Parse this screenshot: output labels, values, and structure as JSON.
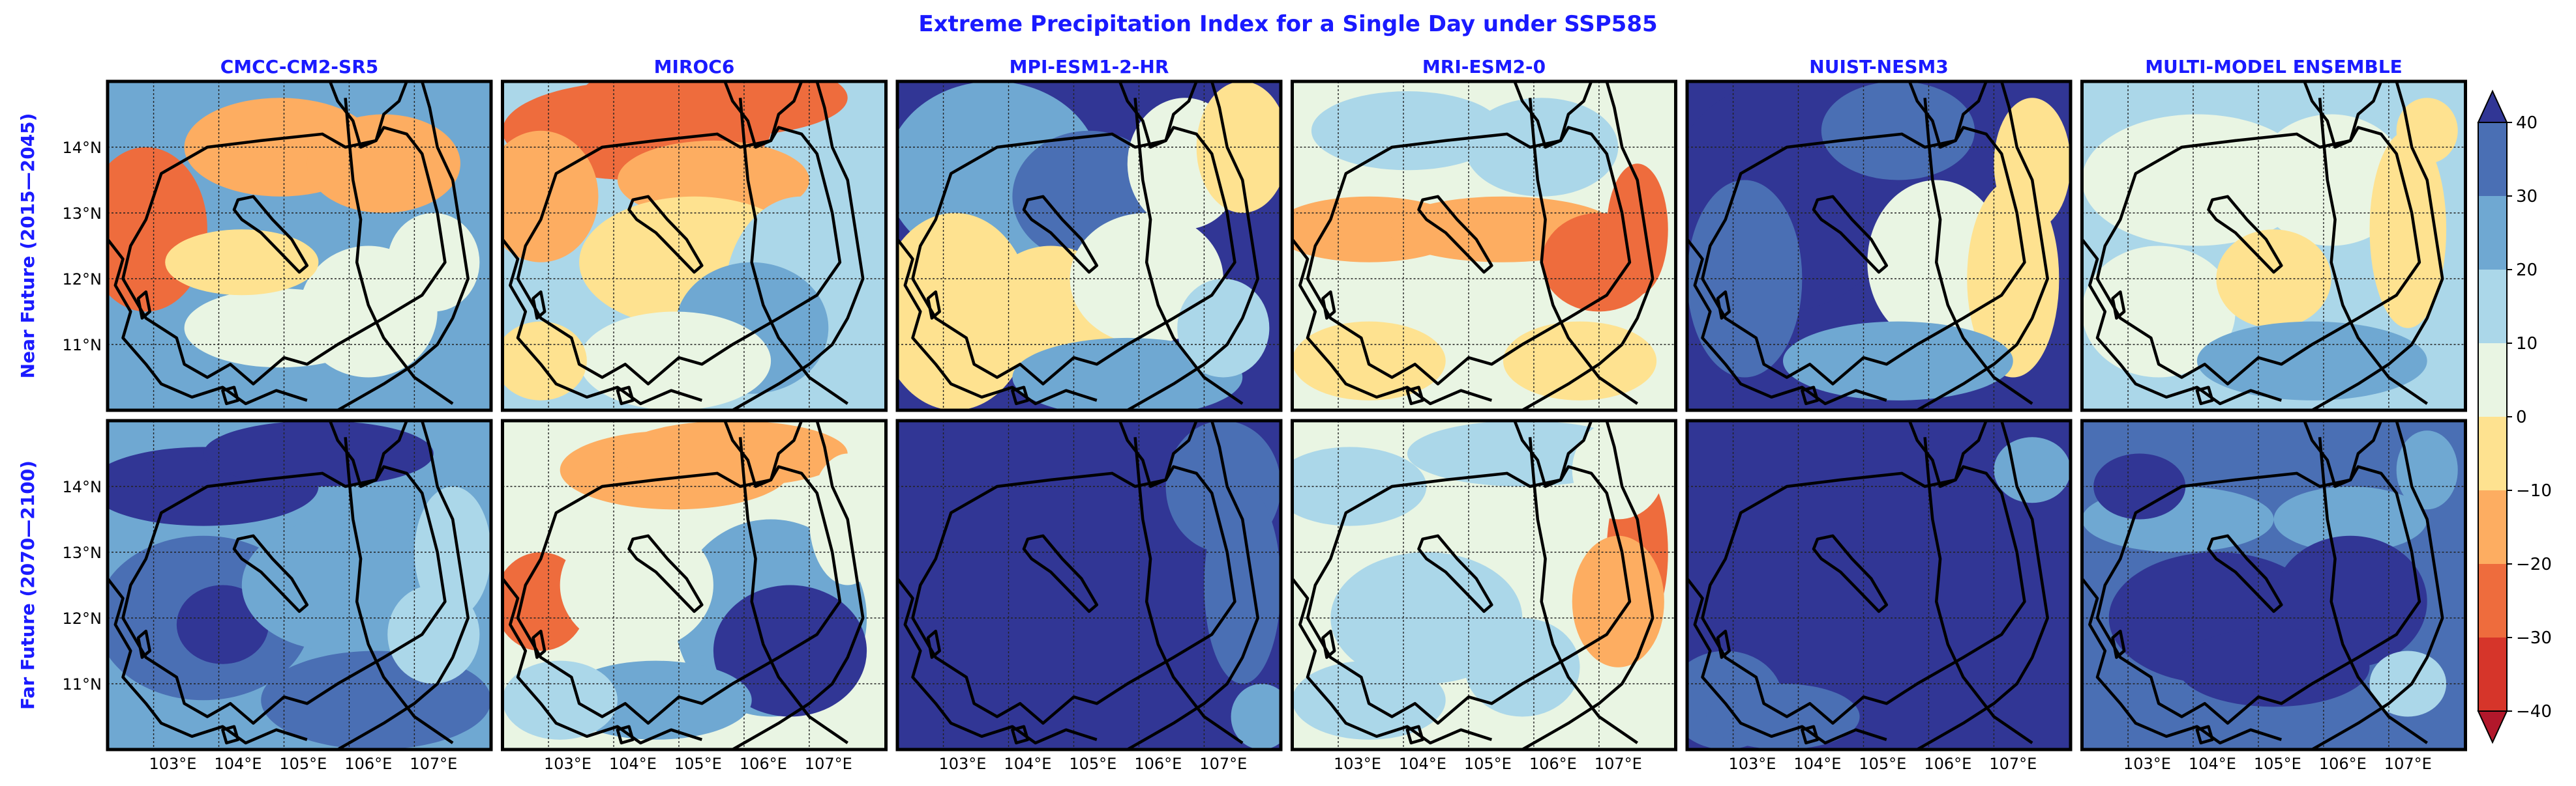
{
  "title": "Extreme Precipitation Index for a Single Day under SSP585",
  "title_color": "#1a1aff",
  "models": [
    "CMCC-CM2-SR5",
    "MIROC6",
    "MPI-ESM1-2-HR",
    "MRI-ESM2-0",
    "NUIST-NESM3",
    "MULTI-MODEL ENSEMBLE"
  ],
  "rows": [
    "Near Future (2015—2045)",
    "Far Future (2070—2100)"
  ],
  "lat_ticks": [
    "14°N",
    "13°N",
    "12°N",
    "11°N"
  ],
  "lon_ticks": [
    "103°E",
    "104°E",
    "105°E",
    "106°E",
    "107°E"
  ],
  "colorbar": {
    "ticks": [
      "40",
      "30",
      "20",
      "10",
      "0",
      "−10",
      "−20",
      "−30",
      "−40"
    ],
    "levels": [
      -40,
      -30,
      -20,
      -10,
      0,
      10,
      20,
      30,
      40
    ],
    "colors": {
      "n40": "#b2182b",
      "n30": "#d6352a",
      "n20": "#ee6c3d",
      "n10": "#fdad61",
      "n0": "#fee290",
      "p0": "#e9f5e3",
      "p10": "#abd7e9",
      "p20": "#6fa8d2",
      "p30": "#4a6fb4",
      "p40": "#313695"
    },
    "extend": "both"
  },
  "panels": [
    {
      "row": 0,
      "col": 0,
      "base": 3,
      "blobs": [
        [
          0.1,
          0.45,
          0.16,
          0.25,
          -2
        ],
        [
          0.45,
          0.2,
          0.25,
          0.15,
          -1
        ],
        [
          0.72,
          0.25,
          0.2,
          0.15,
          -1
        ],
        [
          0.68,
          0.7,
          0.18,
          0.2,
          1
        ],
        [
          0.45,
          0.75,
          0.25,
          0.12,
          1
        ],
        [
          0.35,
          0.55,
          0.2,
          0.1,
          0
        ],
        [
          0.85,
          0.55,
          0.12,
          0.15,
          1
        ]
      ]
    },
    {
      "row": 0,
      "col": 1,
      "base": 2,
      "blobs": [
        [
          0.35,
          0.15,
          0.35,
          0.15,
          -2
        ],
        [
          0.55,
          0.05,
          0.35,
          0.12,
          -2
        ],
        [
          0.55,
          0.3,
          0.25,
          0.12,
          -1
        ],
        [
          0.1,
          0.35,
          0.15,
          0.2,
          -1
        ],
        [
          0.5,
          0.55,
          0.3,
          0.2,
          0
        ],
        [
          0.78,
          0.65,
          0.2,
          0.3,
          2
        ],
        [
          0.65,
          0.75,
          0.2,
          0.2,
          3
        ],
        [
          0.45,
          0.85,
          0.25,
          0.15,
          1
        ],
        [
          0.1,
          0.85,
          0.12,
          0.12,
          0
        ]
      ]
    },
    {
      "row": 0,
      "col": 2,
      "base": 5,
      "blobs": [
        [
          0.25,
          0.28,
          0.28,
          0.28,
          3
        ],
        [
          0.5,
          0.35,
          0.2,
          0.2,
          4
        ],
        [
          0.15,
          0.7,
          0.2,
          0.3,
          0
        ],
        [
          0.4,
          0.7,
          0.18,
          0.2,
          0
        ],
        [
          0.65,
          0.6,
          0.2,
          0.2,
          1
        ],
        [
          0.75,
          0.25,
          0.15,
          0.2,
          1
        ],
        [
          0.9,
          0.2,
          0.12,
          0.2,
          0
        ],
        [
          0.6,
          0.9,
          0.3,
          0.12,
          3
        ],
        [
          0.85,
          0.75,
          0.12,
          0.15,
          2
        ]
      ]
    },
    {
      "row": 0,
      "col": 3,
      "base": 1,
      "blobs": [
        [
          0.3,
          0.15,
          0.25,
          0.12,
          2
        ],
        [
          0.65,
          0.2,
          0.2,
          0.15,
          2
        ],
        [
          0.2,
          0.45,
          0.25,
          0.1,
          -1
        ],
        [
          0.55,
          0.45,
          0.3,
          0.1,
          -1
        ],
        [
          0.8,
          0.55,
          0.15,
          0.15,
          -2
        ],
        [
          0.9,
          0.45,
          0.08,
          0.2,
          -2
        ],
        [
          0.4,
          0.7,
          0.3,
          0.15,
          1
        ],
        [
          0.2,
          0.85,
          0.2,
          0.12,
          0
        ],
        [
          0.75,
          0.85,
          0.2,
          0.12,
          0
        ]
      ]
    },
    {
      "row": 0,
      "col": 4,
      "base": 5,
      "blobs": [
        [
          0.25,
          0.35,
          0.3,
          0.35,
          5
        ],
        [
          0.15,
          0.6,
          0.15,
          0.3,
          4
        ],
        [
          0.55,
          0.15,
          0.2,
          0.15,
          4
        ],
        [
          0.65,
          0.55,
          0.18,
          0.25,
          1
        ],
        [
          0.85,
          0.6,
          0.12,
          0.3,
          0
        ],
        [
          0.9,
          0.25,
          0.1,
          0.2,
          0
        ],
        [
          0.55,
          0.85,
          0.3,
          0.12,
          3
        ]
      ]
    },
    {
      "row": 0,
      "col": 5,
      "base": 2,
      "blobs": [
        [
          0.3,
          0.3,
          0.3,
          0.2,
          1
        ],
        [
          0.65,
          0.3,
          0.2,
          0.2,
          1
        ],
        [
          0.2,
          0.7,
          0.2,
          0.2,
          1
        ],
        [
          0.5,
          0.6,
          0.15,
          0.15,
          0
        ],
        [
          0.85,
          0.45,
          0.1,
          0.3,
          0
        ],
        [
          0.9,
          0.15,
          0.08,
          0.1,
          0
        ],
        [
          0.6,
          0.85,
          0.3,
          0.12,
          3
        ]
      ]
    },
    {
      "row": 1,
      "col": 0,
      "base": 3,
      "blobs": [
        [
          0.25,
          0.2,
          0.3,
          0.12,
          5
        ],
        [
          0.55,
          0.1,
          0.3,
          0.1,
          5
        ],
        [
          0.25,
          0.6,
          0.28,
          0.25,
          4
        ],
        [
          0.3,
          0.62,
          0.12,
          0.12,
          5
        ],
        [
          0.6,
          0.5,
          0.25,
          0.2,
          3
        ],
        [
          0.7,
          0.85,
          0.3,
          0.15,
          4
        ],
        [
          0.9,
          0.4,
          0.1,
          0.2,
          2
        ],
        [
          0.85,
          0.65,
          0.12,
          0.15,
          2
        ]
      ]
    },
    {
      "row": 1,
      "col": 1,
      "base": 1,
      "blobs": [
        [
          0.45,
          0.15,
          0.3,
          0.12,
          -1
        ],
        [
          0.6,
          0.1,
          0.3,
          0.1,
          -1
        ],
        [
          0.1,
          0.55,
          0.12,
          0.15,
          -2
        ],
        [
          0.7,
          0.6,
          0.25,
          0.3,
          3
        ],
        [
          0.75,
          0.7,
          0.2,
          0.2,
          5
        ],
        [
          0.4,
          0.85,
          0.25,
          0.12,
          3
        ],
        [
          0.15,
          0.85,
          0.15,
          0.12,
          2
        ],
        [
          0.35,
          0.5,
          0.2,
          0.2,
          1
        ],
        [
          0.9,
          0.3,
          0.1,
          0.2,
          1
        ]
      ]
    },
    {
      "row": 1,
      "col": 2,
      "base": 5,
      "blobs": [
        [
          0.85,
          0.2,
          0.15,
          0.2,
          4
        ],
        [
          0.9,
          0.5,
          0.1,
          0.3,
          4
        ],
        [
          0.95,
          0.9,
          0.08,
          0.1,
          3
        ]
      ]
    },
    {
      "row": 1,
      "col": 3,
      "base": 1,
      "blobs": [
        [
          0.9,
          0.4,
          0.08,
          0.25,
          -2
        ],
        [
          0.85,
          0.55,
          0.12,
          0.2,
          -1
        ],
        [
          0.15,
          0.2,
          0.2,
          0.12,
          2
        ],
        [
          0.6,
          0.1,
          0.3,
          0.1,
          2
        ],
        [
          0.35,
          0.6,
          0.25,
          0.2,
          2
        ],
        [
          0.2,
          0.85,
          0.2,
          0.12,
          2
        ],
        [
          0.6,
          0.75,
          0.15,
          0.15,
          2
        ],
        [
          0.85,
          0.15,
          0.12,
          0.15,
          1
        ]
      ]
    },
    {
      "row": 1,
      "col": 4,
      "base": 5,
      "blobs": [
        [
          0.9,
          0.15,
          0.1,
          0.1,
          3
        ],
        [
          0.1,
          0.85,
          0.15,
          0.15,
          4
        ],
        [
          0.25,
          0.9,
          0.2,
          0.1,
          4
        ]
      ]
    },
    {
      "row": 1,
      "col": 5,
      "base": 4,
      "blobs": [
        [
          0.25,
          0.3,
          0.25,
          0.1,
          3
        ],
        [
          0.7,
          0.3,
          0.2,
          0.1,
          3
        ],
        [
          0.35,
          0.6,
          0.28,
          0.2,
          5
        ],
        [
          0.7,
          0.55,
          0.2,
          0.2,
          5
        ],
        [
          0.5,
          0.75,
          0.25,
          0.12,
          5
        ],
        [
          0.9,
          0.15,
          0.08,
          0.12,
          3
        ],
        [
          0.85,
          0.8,
          0.1,
          0.1,
          2
        ],
        [
          0.15,
          0.2,
          0.12,
          0.1,
          5
        ]
      ]
    }
  ]
}
